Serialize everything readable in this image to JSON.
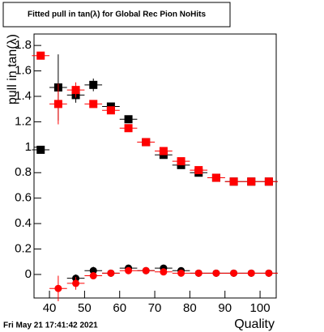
{
  "chart_data": {
    "type": "scatter",
    "title": "Fitted pull in tan(λ) for Global Rec Pion NoHits",
    "x_label": "Quality",
    "y_label": "pull in tan(λ)",
    "footer": "Fri May 21 17:41:42 2021",
    "x": [
      37.5,
      42.5,
      47.5,
      52.5,
      57.5,
      62.5,
      67.5,
      72.5,
      77.5,
      82.5,
      87.5,
      92.5,
      97.5,
      102.5
    ],
    "xerr": 2.5,
    "xlim": [
      35.6,
      104.6
    ],
    "xticks": [
      40,
      50,
      60,
      70,
      80,
      90,
      100
    ],
    "ylim": [
      -0.185,
      1.89
    ],
    "yticks": [
      0,
      0.2,
      0.4,
      0.6,
      0.8,
      1,
      1.2,
      1.4,
      1.6,
      1.8
    ],
    "series": [
      {
        "marker": "square",
        "color": "#000000",
        "values": [
          0.98,
          1.47,
          1.41,
          1.49,
          1.32,
          1.22,
          1.04,
          0.94,
          0.86,
          0.8,
          0.76,
          0.73,
          0.73,
          0.73
        ],
        "errors": [
          0.01,
          0.26,
          0.06,
          0.05,
          0.02,
          0.02,
          0.02,
          0.02,
          0.02,
          0.02,
          0.02,
          0.02,
          0.02,
          0.02
        ]
      },
      {
        "marker": "square",
        "color": "#ff0000",
        "values": [
          1.72,
          1.34,
          1.45,
          1.34,
          1.29,
          1.15,
          1.04,
          0.97,
          0.89,
          0.82,
          0.76,
          0.73,
          0.73,
          0.73
        ],
        "errors": [
          0.03,
          0.16,
          0.06,
          0.03,
          0.03,
          0.02,
          0.02,
          0.02,
          0.02,
          0.02,
          0.02,
          0.02,
          0.02,
          0.02
        ]
      },
      {
        "marker": "circle",
        "color": "#000000",
        "values": [
          null,
          null,
          -0.03,
          0.03,
          0.01,
          0.05,
          0.03,
          0.05,
          0.03,
          0.01,
          0.01,
          0.01,
          0.01,
          0.01
        ],
        "errors": [
          null,
          null,
          0.03,
          0.03,
          0.02,
          0.02,
          0.02,
          0.02,
          0.02,
          0.01,
          0.01,
          0.01,
          0.01,
          0.01
        ]
      },
      {
        "marker": "circle",
        "color": "#ff0000",
        "values": [
          null,
          -0.11,
          -0.07,
          -0.01,
          0.01,
          0.03,
          0.03,
          0.02,
          0.01,
          0.01,
          0.01,
          0.01,
          0.01,
          0.01
        ],
        "errors": [
          null,
          0.1,
          0.05,
          0.02,
          0.02,
          0.02,
          0.01,
          0.01,
          0.01,
          0.01,
          0.01,
          0.01,
          0.01,
          0.01
        ]
      }
    ]
  }
}
